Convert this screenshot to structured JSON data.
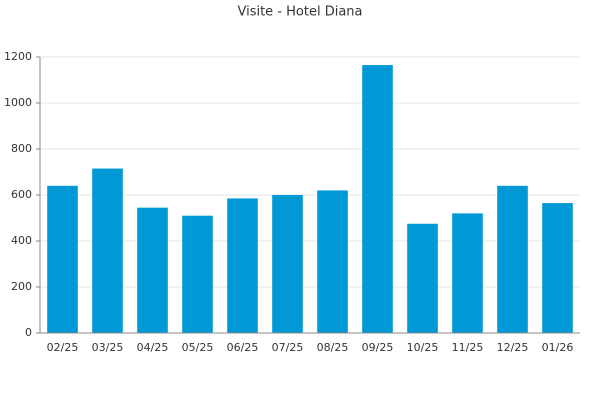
{
  "chart_data": {
    "type": "bar",
    "title": "Visite - Hotel Diana",
    "categories": [
      "02/25",
      "03/25",
      "04/25",
      "05/25",
      "06/25",
      "07/25",
      "08/25",
      "09/25",
      "10/25",
      "11/25",
      "12/25",
      "01/26"
    ],
    "values": [
      640,
      715,
      545,
      510,
      585,
      600,
      620,
      1165,
      475,
      520,
      640,
      565
    ],
    "color": "#0099d6",
    "ylim": [
      0,
      1200
    ],
    "yticks": [
      0,
      200,
      400,
      600,
      800,
      1000,
      1200
    ],
    "grid": true
  }
}
